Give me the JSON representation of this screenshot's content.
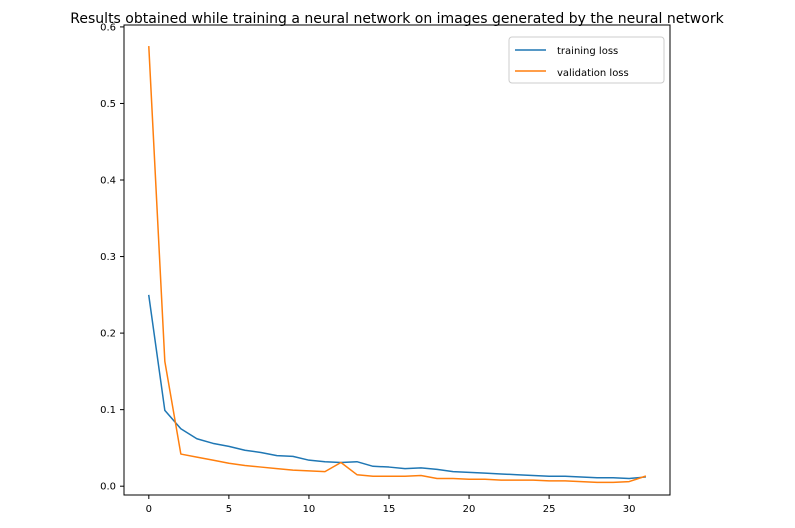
{
  "chart_data": {
    "type": "line",
    "title": "Results obtained while training a neural network on images generated by the neural network",
    "xlabel": "",
    "ylabel": "",
    "xlim": [
      -1.55,
      32.55
    ],
    "ylim": [
      -0.0115,
      0.6025
    ],
    "xticks": [
      0,
      5,
      10,
      15,
      20,
      25,
      30
    ],
    "xtick_labels": [
      "0",
      "5",
      "10",
      "15",
      "20",
      "25",
      "30"
    ],
    "yticks": [
      0.0,
      0.1,
      0.2,
      0.3,
      0.4,
      0.5,
      0.6
    ],
    "ytick_labels": [
      "0.0",
      "0.1",
      "0.2",
      "0.3",
      "0.4",
      "0.5",
      "0.6"
    ],
    "grid": false,
    "legend_position": "upper right",
    "x": [
      0,
      1,
      2,
      3,
      4,
      5,
      6,
      7,
      8,
      9,
      10,
      11,
      12,
      13,
      14,
      15,
      16,
      17,
      18,
      19,
      20,
      21,
      22,
      23,
      24,
      25,
      26,
      27,
      28,
      29,
      30,
      31
    ],
    "series": [
      {
        "name": "training loss",
        "color": "#1f77b4",
        "values": [
          0.249,
          0.099,
          0.075,
          0.062,
          0.056,
          0.052,
          0.047,
          0.044,
          0.04,
          0.039,
          0.034,
          0.032,
          0.031,
          0.032,
          0.026,
          0.025,
          0.023,
          0.024,
          0.022,
          0.019,
          0.018,
          0.017,
          0.016,
          0.015,
          0.014,
          0.013,
          0.013,
          0.012,
          0.011,
          0.011,
          0.01,
          0.012
        ]
      },
      {
        "name": "validation loss",
        "color": "#ff7f0e",
        "values": [
          0.574,
          0.163,
          0.042,
          0.038,
          0.034,
          0.03,
          0.027,
          0.025,
          0.023,
          0.021,
          0.02,
          0.019,
          0.031,
          0.015,
          0.013,
          0.013,
          0.013,
          0.014,
          0.01,
          0.01,
          0.009,
          0.009,
          0.008,
          0.008,
          0.008,
          0.007,
          0.007,
          0.006,
          0.005,
          0.005,
          0.006,
          0.013
        ]
      }
    ]
  }
}
